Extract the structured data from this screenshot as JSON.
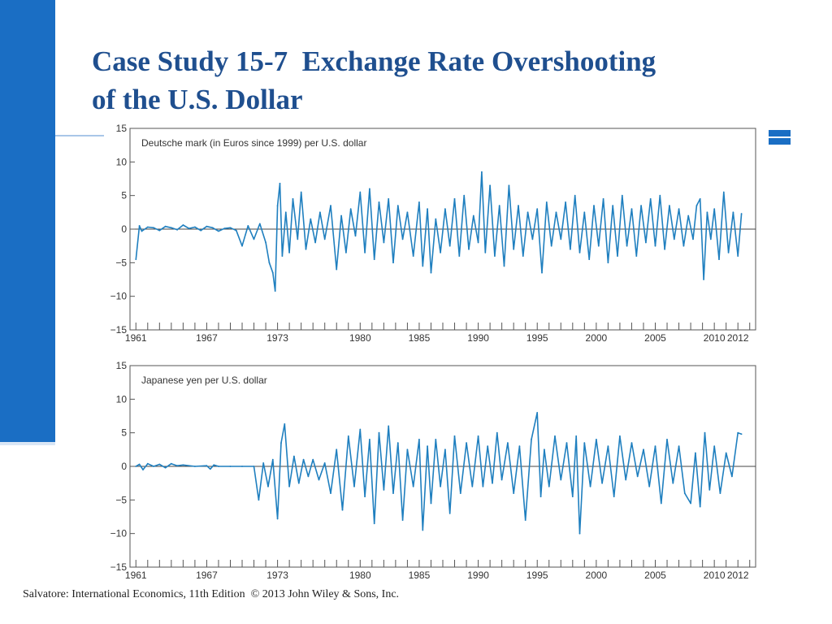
{
  "slide": {
    "title_line1": "Case Study 15-7  Exchange Rate Overshooting",
    "title_line2": "of the U.S. Dollar",
    "footer": "Salvatore: International Economics, 11th Edition  © 2013 John Wiley & Sons, Inc.",
    "accent_color": "#1a6ec4",
    "title_color": "#1f4f8f"
  },
  "chart_data": [
    {
      "type": "line",
      "title": "Deutsche mark (in Euros since 1999) per U.S. dollar",
      "x_tick_labels": [
        "1961",
        "1967",
        "1973",
        "1980",
        "1985",
        "1990",
        "1995",
        "2000",
        "2005",
        "2010",
        "2012"
      ],
      "x_tick_values": [
        1961,
        1967,
        1973,
        1980,
        1985,
        1990,
        1995,
        2000,
        2005,
        2010,
        2012
      ],
      "xlim": [
        1960.5,
        2013.5
      ],
      "y_tick_labels": [
        "15",
        "10",
        "5",
        "0",
        "−5",
        "−10",
        "−15"
      ],
      "ylim": [
        -15,
        15
      ],
      "zero_line": true,
      "line_color": "#1f7fbf",
      "series": [
        {
          "x": [
            1961.0,
            1961.3,
            1961.5,
            1962.0,
            1962.5,
            1963.0,
            1963.5,
            1964.0,
            1964.5,
            1965.0,
            1965.5,
            1966.0,
            1966.5,
            1967.0,
            1967.5,
            1968.0,
            1968.5,
            1969.0,
            1969.5,
            1970.0,
            1970.5,
            1971.0,
            1971.5,
            1972.0,
            1972.3,
            1972.6,
            1972.8,
            1973.0,
            1973.2,
            1973.4,
            1973.7,
            1974.0,
            1974.3,
            1974.7,
            1975.0,
            1975.4,
            1975.8,
            1976.2,
            1976.6,
            1977.0,
            1977.5,
            1978.0,
            1978.4,
            1978.8,
            1979.2,
            1979.6,
            1980.0,
            1980.4,
            1980.8,
            1981.2,
            1981.6,
            1982.0,
            1982.4,
            1982.8,
            1983.2,
            1983.6,
            1984.0,
            1984.5,
            1985.0,
            1985.3,
            1985.7,
            1986.0,
            1986.4,
            1986.8,
            1987.2,
            1987.6,
            1988.0,
            1988.4,
            1988.8,
            1989.2,
            1989.6,
            1990.0,
            1990.3,
            1990.6,
            1991.0,
            1991.4,
            1991.8,
            1992.2,
            1992.6,
            1993.0,
            1993.4,
            1993.8,
            1994.2,
            1994.6,
            1995.0,
            1995.4,
            1995.8,
            1996.2,
            1996.6,
            1997.0,
            1997.4,
            1997.8,
            1998.2,
            1998.6,
            1999.0,
            1999.4,
            1999.8,
            2000.2,
            2000.6,
            2001.0,
            2001.4,
            2001.8,
            2002.2,
            2002.6,
            2003.0,
            2003.4,
            2003.8,
            2004.2,
            2004.6,
            2005.0,
            2005.4,
            2005.8,
            2006.2,
            2006.6,
            2007.0,
            2007.4,
            2007.8,
            2008.2,
            2008.5,
            2008.8,
            2009.1,
            2009.4,
            2009.7,
            2010.0,
            2010.4,
            2010.8,
            2011.2,
            2011.6,
            2012.0,
            2012.3
          ],
          "y": [
            -4.5,
            0.5,
            -0.3,
            0.3,
            0.2,
            -0.2,
            0.4,
            0.2,
            -0.1,
            0.6,
            0.1,
            0.3,
            -0.2,
            0.4,
            0.2,
            -0.3,
            0.1,
            0.2,
            -0.2,
            -2.5,
            0.5,
            -1.5,
            0.8,
            -2.0,
            -5.0,
            -6.5,
            -9.2,
            3.5,
            6.8,
            -4.0,
            2.5,
            -3.5,
            4.5,
            -1.5,
            5.5,
            -3.0,
            1.5,
            -2.0,
            2.5,
            -1.5,
            3.5,
            -6.0,
            2.0,
            -3.5,
            3.0,
            -1.0,
            5.5,
            -3.5,
            6.0,
            -4.5,
            4.0,
            -2.0,
            4.5,
            -5.0,
            3.5,
            -1.5,
            2.5,
            -4.0,
            4.0,
            -5.5,
            3.0,
            -6.5,
            1.5,
            -3.5,
            3.0,
            -2.5,
            4.5,
            -4.0,
            5.0,
            -3.0,
            2.0,
            -2.0,
            8.5,
            -3.5,
            6.5,
            -4.0,
            3.5,
            -5.5,
            6.5,
            -3.0,
            3.5,
            -4.0,
            2.5,
            -1.5,
            3.0,
            -6.5,
            4.0,
            -2.5,
            2.5,
            -1.5,
            4.0,
            -3.0,
            5.0,
            -3.5,
            2.5,
            -4.5,
            3.5,
            -2.5,
            4.5,
            -5.0,
            3.5,
            -4.0,
            5.0,
            -2.5,
            3.0,
            -4.0,
            3.5,
            -2.0,
            4.5,
            -2.5,
            5.0,
            -3.0,
            3.5,
            -1.5,
            3.0,
            -2.5,
            2.0,
            -1.5,
            3.5,
            4.5,
            -7.5,
            2.5,
            -1.5,
            3.0,
            -4.5,
            5.5,
            -3.5,
            2.5,
            -4.0,
            2.3
          ]
        }
      ]
    },
    {
      "type": "line",
      "title": "Japanese yen per U.S. dollar",
      "x_tick_labels": [
        "1961",
        "1967",
        "1973",
        "1980",
        "1985",
        "1990",
        "1995",
        "2000",
        "2005",
        "2010",
        "2012"
      ],
      "x_tick_values": [
        1961,
        1967,
        1973,
        1980,
        1985,
        1990,
        1995,
        2000,
        2005,
        2010,
        2012
      ],
      "xlim": [
        1960.5,
        2013.5
      ],
      "y_tick_labels": [
        "15",
        "10",
        "5",
        "0",
        "−5",
        "−10",
        "−15"
      ],
      "ylim": [
        -15,
        15
      ],
      "zero_line": true,
      "line_color": "#1f7fbf",
      "series": [
        {
          "x": [
            1961.0,
            1961.3,
            1961.6,
            1962.0,
            1962.5,
            1963.0,
            1963.5,
            1964.0,
            1964.5,
            1965.0,
            1966.0,
            1967.0,
            1967.3,
            1967.6,
            1968.0,
            1969.0,
            1970.0,
            1971.0,
            1971.4,
            1971.8,
            1972.2,
            1972.6,
            1973.0,
            1973.3,
            1973.6,
            1974.0,
            1974.4,
            1974.8,
            1975.2,
            1975.6,
            1976.0,
            1976.5,
            1977.0,
            1977.5,
            1978.0,
            1978.5,
            1979.0,
            1979.5,
            1980.0,
            1980.4,
            1980.8,
            1981.2,
            1981.6,
            1982.0,
            1982.4,
            1982.8,
            1983.2,
            1983.6,
            1984.0,
            1984.5,
            1985.0,
            1985.3,
            1985.7,
            1986.0,
            1986.4,
            1986.8,
            1987.2,
            1987.6,
            1988.0,
            1988.5,
            1989.0,
            1989.5,
            1990.0,
            1990.4,
            1990.8,
            1991.2,
            1991.6,
            1992.0,
            1992.5,
            1993.0,
            1993.5,
            1994.0,
            1994.5,
            1995.0,
            1995.3,
            1995.6,
            1996.0,
            1996.5,
            1997.0,
            1997.5,
            1998.0,
            1998.3,
            1998.6,
            1999.0,
            1999.5,
            2000.0,
            2000.5,
            2001.0,
            2001.5,
            2002.0,
            2002.5,
            2003.0,
            2003.5,
            2004.0,
            2004.5,
            2005.0,
            2005.5,
            2006.0,
            2006.5,
            2007.0,
            2007.5,
            2008.0,
            2008.4,
            2008.8,
            2009.2,
            2009.6,
            2010.0,
            2010.5,
            2011.0,
            2011.5,
            2012.0,
            2012.3
          ],
          "y": [
            0.0,
            0.3,
            -0.5,
            0.4,
            0.0,
            0.3,
            -0.2,
            0.4,
            0.1,
            0.2,
            0.0,
            0.1,
            -0.4,
            0.2,
            0.0,
            0.0,
            0.0,
            0.0,
            -5.0,
            0.5,
            -3.0,
            1.0,
            -7.8,
            3.5,
            6.3,
            -3.0,
            1.5,
            -2.5,
            1.0,
            -1.5,
            1.0,
            -2.0,
            0.5,
            -4.0,
            2.5,
            -6.5,
            4.5,
            -3.0,
            5.5,
            -4.5,
            4.0,
            -8.5,
            5.0,
            -3.5,
            6.0,
            -4.0,
            3.5,
            -8.0,
            2.5,
            -3.0,
            4.0,
            -9.5,
            3.0,
            -5.5,
            4.0,
            -3.0,
            2.5,
            -7.0,
            4.5,
            -4.0,
            3.5,
            -3.0,
            4.5,
            -3.0,
            3.0,
            -2.5,
            5.0,
            -2.0,
            3.5,
            -4.0,
            3.0,
            -8.0,
            4.0,
            8.0,
            -4.5,
            2.5,
            -3.0,
            4.5,
            -2.0,
            3.5,
            -4.5,
            4.5,
            -10.0,
            3.5,
            -3.0,
            4.0,
            -2.5,
            3.0,
            -4.5,
            4.5,
            -2.0,
            3.5,
            -1.5,
            2.5,
            -3.0,
            3.0,
            -5.5,
            4.0,
            -2.5,
            3.0,
            -4.0,
            -5.5,
            2.0,
            -6.0,
            5.0,
            -3.5,
            3.0,
            -4.0,
            2.0,
            -1.5,
            5.0,
            4.8
          ]
        }
      ]
    }
  ]
}
